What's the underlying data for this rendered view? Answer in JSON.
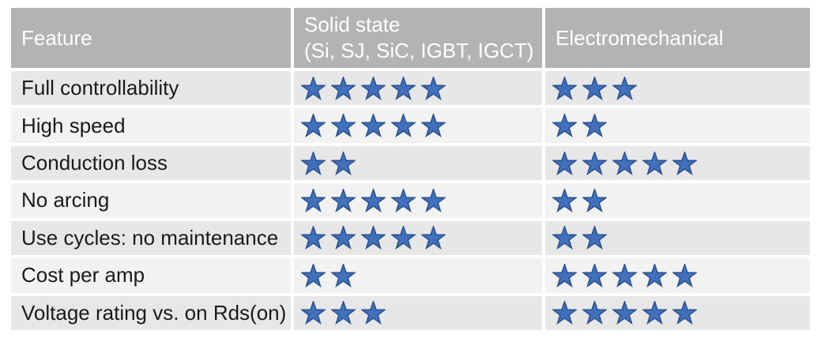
{
  "table": {
    "columns": [
      {
        "label": "Feature"
      },
      {
        "label": "Solid state",
        "sublabel": "(Si, SJ, SiC, IGBT, IGCT)"
      },
      {
        "label": "Electromechanical"
      }
    ],
    "rows": [
      {
        "feature": "Full controllability",
        "solid_state_stars": 5,
        "electromechanical_stars": 3
      },
      {
        "feature": "High speed",
        "solid_state_stars": 5,
        "electromechanical_stars": 2
      },
      {
        "feature": "Conduction loss",
        "solid_state_stars": 2,
        "electromechanical_stars": 5
      },
      {
        "feature": "No arcing",
        "solid_state_stars": 5,
        "electromechanical_stars": 2
      },
      {
        "feature": "Use cycles: no maintenance",
        "solid_state_stars": 5,
        "electromechanical_stars": 2
      },
      {
        "feature": "Cost per amp",
        "solid_state_stars": 2,
        "electromechanical_stars": 5
      },
      {
        "feature": "Voltage rating vs. on Rds(on)",
        "solid_state_stars": 3,
        "electromechanical_stars": 5
      }
    ],
    "rating_max": 5,
    "colors": {
      "header_bg": "#b3b3b3",
      "header_text": "#ffffff",
      "row_bg_odd": "#e7e7e7",
      "row_bg_even": "#f2f2f2",
      "star_fill": "#4170bd",
      "star_stroke": "#2c5290",
      "text": "#1a1a1a",
      "background": "#ffffff"
    }
  },
  "chart_data": {
    "type": "table",
    "title": "",
    "categories": [
      "Full controllability",
      "High speed",
      "Conduction loss",
      "No arcing",
      "Use cycles: no maintenance",
      "Cost per amp",
      "Voltage rating vs. on Rds(on)"
    ],
    "series": [
      {
        "name": "Solid state (Si, SJ, SiC, IGBT, IGCT)",
        "values": [
          5,
          5,
          2,
          5,
          5,
          2,
          3
        ]
      },
      {
        "name": "Electromechanical",
        "values": [
          3,
          2,
          5,
          2,
          2,
          5,
          5
        ]
      }
    ],
    "value_range": [
      0,
      5
    ],
    "value_unit": "stars",
    "legend_position": "header-row",
    "grid": false
  }
}
